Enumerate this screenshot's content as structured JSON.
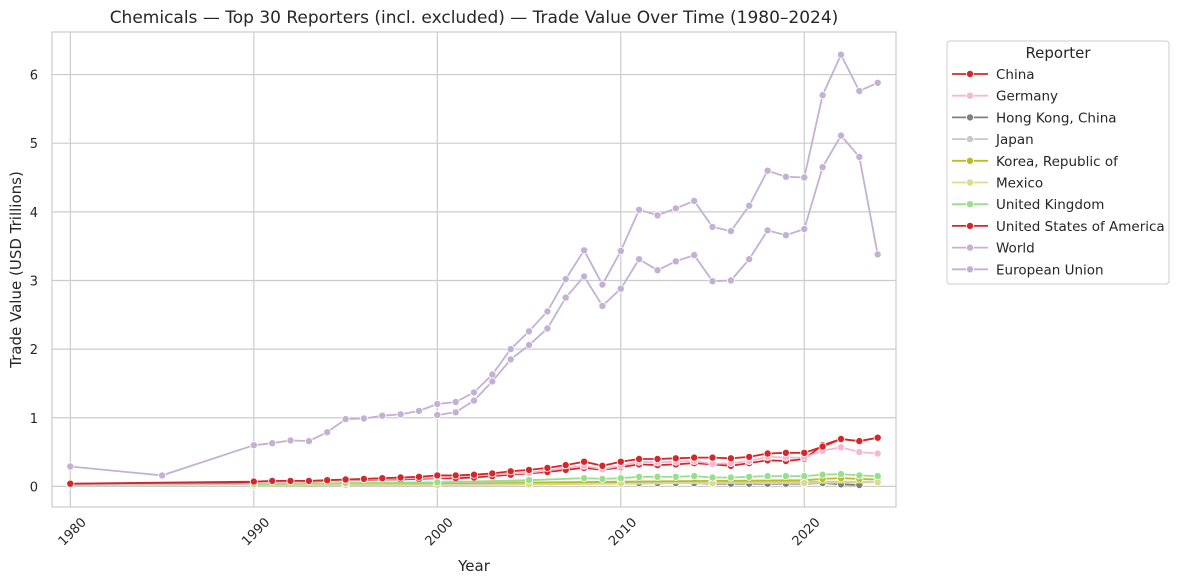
{
  "chart_data": {
    "type": "line",
    "title": "Chemicals — Top 30 Reporters (incl. excluded) — Trade Value Over Time (1980–2024)",
    "xlabel": "Year",
    "ylabel": "Trade Value (USD Trillions)",
    "xlim": [
      1979,
      2025
    ],
    "ylim": [
      -0.3,
      6.62
    ],
    "xticks": [
      1980,
      1990,
      2000,
      2010,
      2020
    ],
    "yticks": [
      0,
      1,
      2,
      3,
      4,
      5,
      6
    ],
    "grid": true,
    "legend": {
      "title": "Reporter",
      "placement": "outside-right"
    },
    "series": [
      {
        "name": "China",
        "color": "#d62728",
        "x": [
          1980,
          1990,
          1991,
          1992,
          1993,
          1994,
          1995,
          1996,
          1997,
          1998,
          1999,
          2000,
          2001,
          2002,
          2003,
          2004,
          2005,
          2006,
          2007,
          2008,
          2009,
          2010,
          2011,
          2012,
          2013,
          2014,
          2015,
          2016,
          2017,
          2018,
          2019,
          2020,
          2021,
          2022,
          2023,
          2024
        ],
        "y": [
          0.03,
          0.06,
          0.07,
          0.07,
          0.07,
          0.08,
          0.09,
          0.09,
          0.1,
          0.1,
          0.11,
          0.12,
          0.12,
          0.13,
          0.15,
          0.17,
          0.19,
          0.21,
          0.24,
          0.27,
          0.24,
          0.28,
          0.32,
          0.31,
          0.32,
          0.34,
          0.32,
          0.3,
          0.34,
          0.38,
          0.37,
          0.4,
          0.6,
          0.69,
          0.66,
          0.71
        ]
      },
      {
        "name": "Germany",
        "color": "#f7b6d2",
        "x": [
          1990,
          1995,
          2000,
          2005,
          2008,
          2009,
          2010,
          2011,
          2012,
          2013,
          2014,
          2015,
          2016,
          2017,
          2018,
          2019,
          2020,
          2021,
          2022,
          2023,
          2024
        ],
        "y": [
          0.05,
          0.09,
          0.13,
          0.2,
          0.3,
          0.25,
          0.3,
          0.36,
          0.35,
          0.36,
          0.37,
          0.33,
          0.34,
          0.37,
          0.43,
          0.42,
          0.42,
          0.52,
          0.57,
          0.5,
          0.48
        ]
      },
      {
        "name": "Hong Kong, China",
        "color": "#7f7f7f",
        "x": [
          1990,
          1995,
          2000,
          2005,
          2010,
          2011,
          2012,
          2013,
          2014,
          2015,
          2016,
          2017,
          2018,
          2019,
          2020,
          2021,
          2022,
          2023
        ],
        "y": [
          0.01,
          0.02,
          0.03,
          0.04,
          0.05,
          0.05,
          0.05,
          0.05,
          0.05,
          0.04,
          0.04,
          0.04,
          0.04,
          0.04,
          0.04,
          0.05,
          0.03,
          0.02
        ]
      },
      {
        "name": "Japan",
        "color": "#c7c7c7",
        "x": [
          1980,
          1990,
          1995,
          2000,
          2005,
          2010,
          2015,
          2020,
          2024
        ],
        "y": [
          0.02,
          0.03,
          0.04,
          0.05,
          0.06,
          0.07,
          0.06,
          0.07,
          0.07
        ]
      },
      {
        "name": "Korea, Republic of",
        "color": "#bcbd22",
        "x": [
          1990,
          1995,
          2000,
          2005,
          2010,
          2015,
          2020,
          2021,
          2022,
          2023,
          2024
        ],
        "y": [
          0.01,
          0.02,
          0.03,
          0.05,
          0.07,
          0.08,
          0.09,
          0.11,
          0.12,
          0.11,
          0.1
        ]
      },
      {
        "name": "Mexico",
        "color": "#dbdb8d",
        "x": [
          1990,
          1995,
          2000,
          2005,
          2010,
          2015,
          2020,
          2024
        ],
        "y": [
          0.01,
          0.02,
          0.02,
          0.03,
          0.04,
          0.05,
          0.05,
          0.06
        ]
      },
      {
        "name": "United Kingdom",
        "color": "#98df8a",
        "x": [
          1990,
          1995,
          2000,
          2005,
          2008,
          2009,
          2010,
          2011,
          2012,
          2013,
          2014,
          2015,
          2016,
          2017,
          2018,
          2019,
          2020,
          2021,
          2022,
          2023,
          2024
        ],
        "y": [
          0.03,
          0.05,
          0.06,
          0.09,
          0.12,
          0.11,
          0.12,
          0.14,
          0.14,
          0.14,
          0.15,
          0.13,
          0.13,
          0.14,
          0.15,
          0.15,
          0.15,
          0.17,
          0.18,
          0.16,
          0.15
        ]
      },
      {
        "name": "United States of America",
        "color": "#d62728",
        "x": [
          1980,
          1990,
          1991,
          1992,
          1993,
          1994,
          1995,
          1996,
          1997,
          1998,
          1999,
          2000,
          2001,
          2002,
          2003,
          2004,
          2005,
          2006,
          2007,
          2008,
          2009,
          2010,
          2011,
          2012,
          2013,
          2014,
          2015,
          2016,
          2017,
          2018,
          2019,
          2020,
          2021,
          2022,
          2023,
          2024
        ],
        "y": [
          0.04,
          0.07,
          0.08,
          0.08,
          0.08,
          0.09,
          0.1,
          0.11,
          0.12,
          0.13,
          0.14,
          0.16,
          0.16,
          0.17,
          0.19,
          0.22,
          0.24,
          0.27,
          0.31,
          0.36,
          0.3,
          0.36,
          0.4,
          0.4,
          0.41,
          0.42,
          0.42,
          0.41,
          0.43,
          0.48,
          0.49,
          0.49,
          0.58,
          0.69,
          0.66,
          0.71
        ]
      },
      {
        "name": "World",
        "color": "#c5b0d5",
        "x": [
          1980,
          1985,
          1990,
          1991,
          1992,
          1993,
          1994,
          1995,
          1996,
          1997,
          1998,
          1999,
          2000,
          2001,
          2002,
          2003,
          2004,
          2005,
          2006,
          2007,
          2008,
          2009,
          2010,
          2011,
          2012,
          2013,
          2014,
          2015,
          2016,
          2017,
          2018,
          2019,
          2020,
          2021,
          2022,
          2023,
          2024
        ],
        "y": [
          0.29,
          0.16,
          0.6,
          0.63,
          0.67,
          0.66,
          0.79,
          0.98,
          0.99,
          1.03,
          1.05,
          1.1,
          1.2,
          1.23,
          1.37,
          1.63,
          2.0,
          2.26,
          2.55,
          3.02,
          3.44,
          2.94,
          3.43,
          4.03,
          3.95,
          4.05,
          4.16,
          3.78,
          3.72,
          4.09,
          4.6,
          4.51,
          4.5,
          5.7,
          6.29,
          5.76,
          5.88
        ]
      },
      {
        "name": "European Union",
        "color": "#c5b0d5",
        "x": [
          2000,
          2001,
          2002,
          2003,
          2004,
          2005,
          2006,
          2007,
          2008,
          2009,
          2010,
          2011,
          2012,
          2013,
          2014,
          2015,
          2016,
          2017,
          2018,
          2019,
          2020,
          2021,
          2022,
          2023,
          2024
        ],
        "y": [
          1.04,
          1.08,
          1.25,
          1.53,
          1.85,
          2.06,
          2.3,
          2.75,
          3.06,
          2.63,
          2.88,
          3.31,
          3.15,
          3.28,
          3.37,
          2.99,
          3.0,
          3.31,
          3.73,
          3.66,
          3.75,
          4.65,
          5.11,
          4.8,
          3.38
        ]
      }
    ]
  }
}
